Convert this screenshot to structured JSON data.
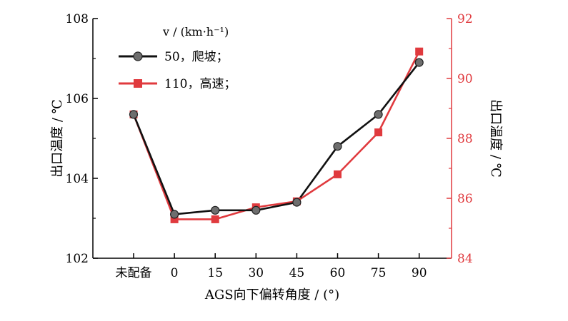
{
  "chart_data": {
    "type": "line",
    "categories": [
      "未配备",
      "0",
      "15",
      "30",
      "45",
      "60",
      "75",
      "90"
    ],
    "xlabel": "AGS向下偏转角度 / (°)",
    "ylabel_left": "出口温度 / ℃",
    "ylabel_right": "出口温度 / ℃",
    "ylim_left": [
      102,
      108
    ],
    "ylim_right": [
      84,
      92
    ],
    "yticks_left": [
      "102",
      "104",
      "106",
      "108"
    ],
    "yticks_right": [
      "84",
      "86",
      "88",
      "90",
      "92"
    ],
    "legend_title": "v / (km·h⁻¹)",
    "legend_placement": "top-left",
    "grid": false,
    "series": [
      {
        "name": "50，爬坡；",
        "axis": "left",
        "color": "#111111",
        "marker": "gray-circle",
        "values": [
          105.6,
          103.1,
          103.2,
          103.2,
          103.4,
          104.8,
          105.6,
          106.9
        ]
      },
      {
        "name": "110，高速；",
        "axis": "right",
        "color": "#e03a3e",
        "marker": "red-square",
        "values": [
          88.8,
          85.3,
          85.3,
          85.7,
          85.9,
          86.8,
          88.2,
          90.9
        ]
      }
    ]
  }
}
